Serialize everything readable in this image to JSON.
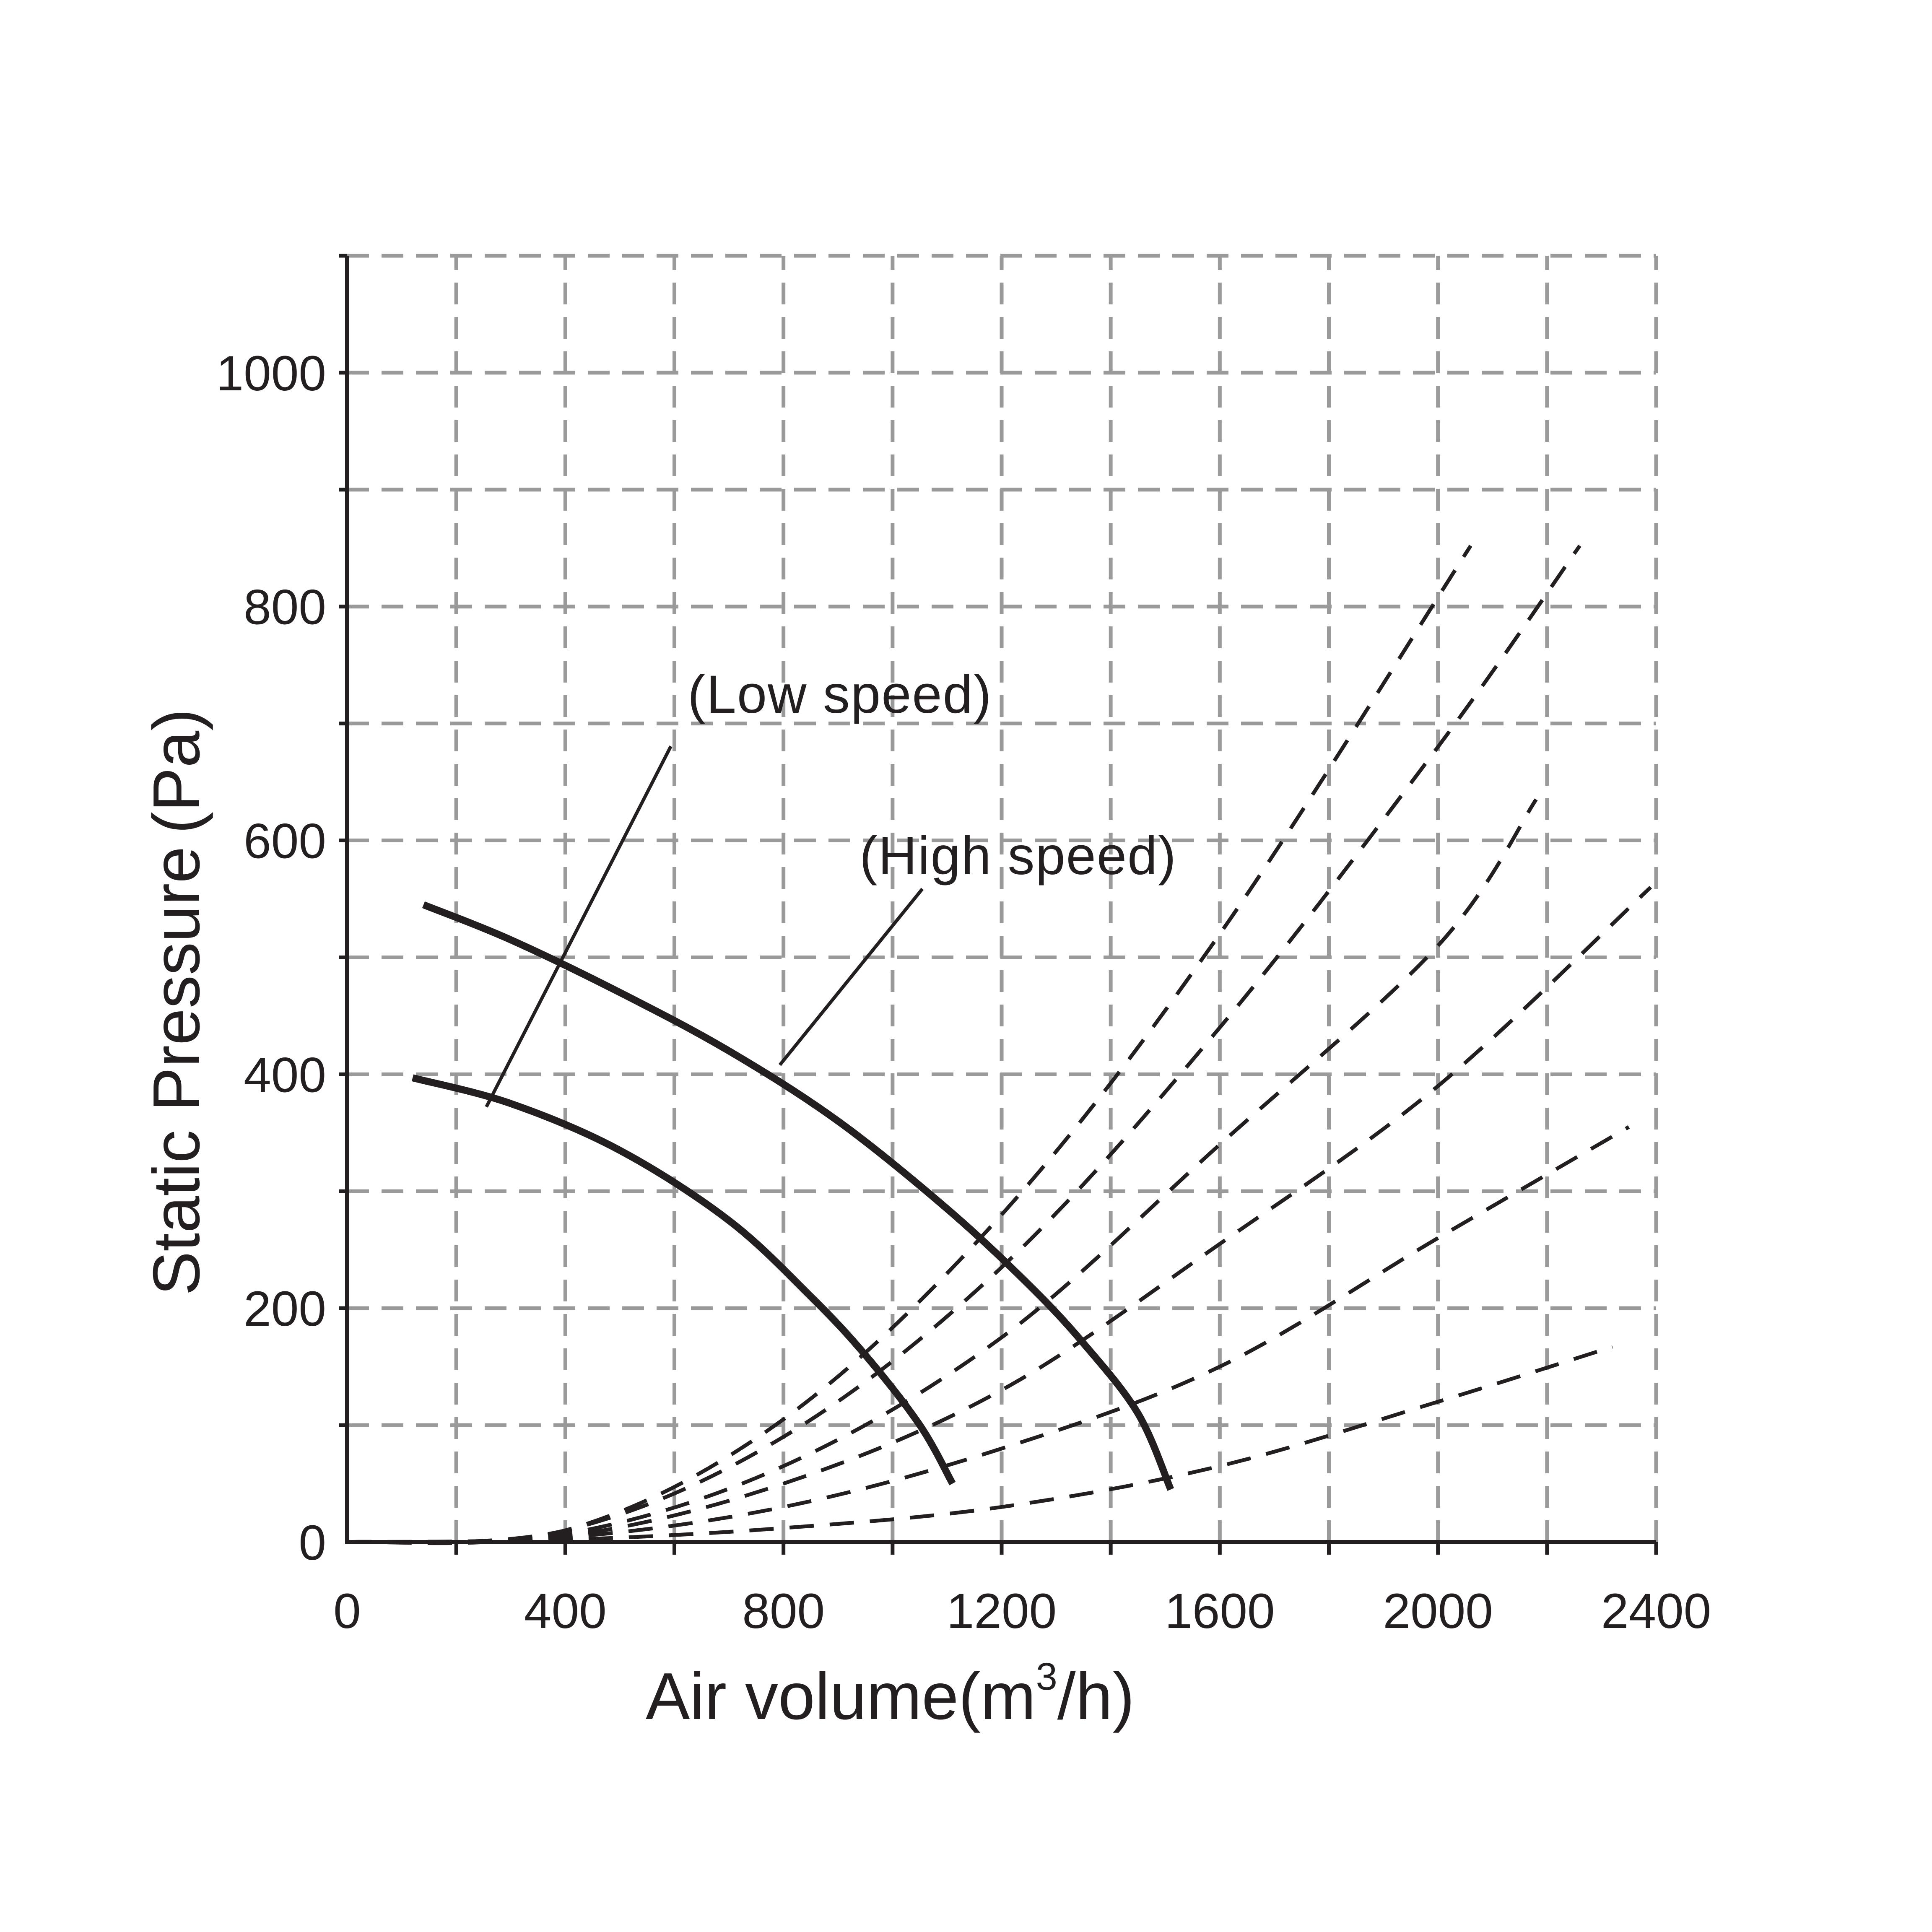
{
  "chart_data": {
    "type": "line",
    "xlabel": "Air  volume(m³/h)",
    "xlabel_main": "Air  volume(m",
    "xlabel_sup": "3",
    "xlabel_tail": "/h)",
    "ylabel": "Static Pressure (Pa)",
    "ylabel_main": "Static Pressure",
    "ylabel_unit": "(Pa)",
    "xlim": [
      0,
      2400
    ],
    "ylim": [
      0,
      1100
    ],
    "x_ticks": [
      0,
      400,
      800,
      1200,
      1600,
      2000,
      2400
    ],
    "x_tick_labels": [
      "0",
      "400",
      "800",
      "1200",
      "1600",
      "2000",
      "2400"
    ],
    "y_ticks": [
      0,
      200,
      400,
      600,
      800,
      1000
    ],
    "y_tick_labels": [
      "0",
      "200",
      "400",
      "600",
      "800",
      "1000"
    ],
    "grid": true,
    "grid_step_x": 200,
    "grid_step_y": 100,
    "series": [
      {
        "name": "(High speed)",
        "style": "solid",
        "points": [
          [
            140,
            545
          ],
          [
            300,
            515
          ],
          [
            500,
            470
          ],
          [
            700,
            420
          ],
          [
            900,
            360
          ],
          [
            1100,
            285
          ],
          [
            1250,
            220
          ],
          [
            1350,
            170
          ],
          [
            1450,
            110
          ],
          [
            1510,
            45
          ]
        ]
      },
      {
        "name": "(Low speed)",
        "style": "solid",
        "points": [
          [
            120,
            397
          ],
          [
            300,
            375
          ],
          [
            500,
            335
          ],
          [
            700,
            275
          ],
          [
            850,
            210
          ],
          [
            950,
            160
          ],
          [
            1050,
            100
          ],
          [
            1110,
            50
          ]
        ]
      }
    ],
    "system_curves": [
      {
        "style": "dashed",
        "points": [
          [
            0,
            0
          ],
          [
            400,
            10
          ],
          [
            800,
            105
          ],
          [
            1200,
            280
          ],
          [
            1600,
            520
          ],
          [
            2060,
            852
          ]
        ]
      },
      {
        "style": "dashed",
        "points": [
          [
            0,
            0
          ],
          [
            400,
            10
          ],
          [
            800,
            90
          ],
          [
            1200,
            235
          ],
          [
            1600,
            440
          ],
          [
            2000,
            680
          ],
          [
            2260,
            852
          ]
        ]
      },
      {
        "style": "dashed",
        "points": [
          [
            0,
            0
          ],
          [
            400,
            7
          ],
          [
            800,
            65
          ],
          [
            1200,
            175
          ],
          [
            1600,
            340
          ],
          [
            2000,
            510
          ],
          [
            2180,
            635
          ]
        ]
      },
      {
        "style": "dashed",
        "points": [
          [
            0,
            0
          ],
          [
            400,
            5
          ],
          [
            800,
            50
          ],
          [
            1200,
            130
          ],
          [
            1600,
            255
          ],
          [
            2000,
            390
          ],
          [
            2390,
            560
          ]
        ]
      },
      {
        "style": "dashed",
        "points": [
          [
            0,
            0
          ],
          [
            400,
            4
          ],
          [
            800,
            30
          ],
          [
            1200,
            80
          ],
          [
            1600,
            150
          ],
          [
            2000,
            260
          ],
          [
            2350,
            355
          ]
        ]
      },
      {
        "style": "dashed",
        "points": [
          [
            0,
            0
          ],
          [
            400,
            2
          ],
          [
            800,
            12
          ],
          [
            1200,
            30
          ],
          [
            1600,
            65
          ],
          [
            2000,
            120
          ],
          [
            2320,
            167
          ]
        ]
      }
    ],
    "annotations": [
      {
        "text": "(Low speed)",
        "target_series": "(Low speed)"
      },
      {
        "text": "(High speed)",
        "target_series": "(High speed)"
      }
    ]
  }
}
